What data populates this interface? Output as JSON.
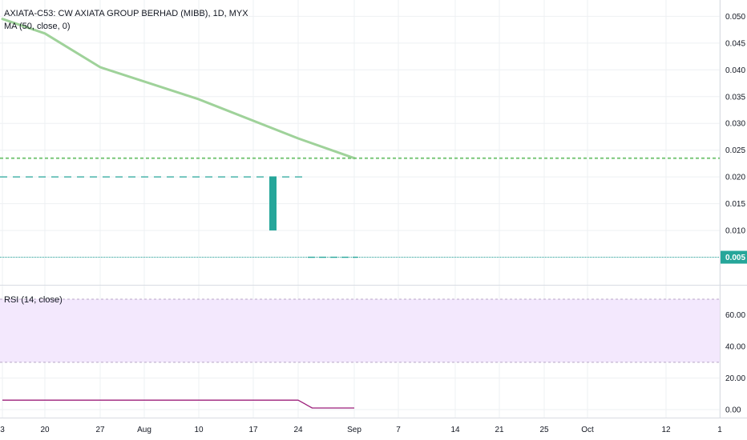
{
  "colors": {
    "grid": "#eef0f3",
    "axis_border": "#d9dce3",
    "ma_line": "#9fd29a",
    "ma_dashed": "#7ac77a",
    "candle": "#26a69a",
    "price_dash": "#26a69a",
    "price_badge": "#26a69a",
    "rsi_line": "#9c1f7a",
    "rsi_band": "#f3e8fd",
    "rsi_band_border": "#b9a6c7"
  },
  "chart_data": [
    {
      "type": "line",
      "title": "AXIATA-C53: CW AXIATA GROUP BERHAD (MIBB), 1D, MYX",
      "indicator_label": "MA (50, close, 0)",
      "x_tick_labels": [
        "3",
        "20",
        "27",
        "Aug",
        "10",
        "17",
        "24",
        "Sep",
        "7",
        "14",
        "21",
        "25",
        "Oct",
        "12",
        "1"
      ],
      "y_ticks": [
        "0.050",
        "0.045",
        "0.040",
        "0.035",
        "0.030",
        "0.025",
        "0.020",
        "0.015",
        "0.010",
        "0.005"
      ],
      "ylim": [
        0.0,
        0.052
      ],
      "ma_series": {
        "x": [
          "Jul 13",
          "Jul 20",
          "Jul 27",
          "Aug 10",
          "Aug 24",
          "Sep 1"
        ],
        "values": [
          0.0495,
          0.0468,
          0.0405,
          0.0345,
          0.0272,
          0.0235
        ]
      },
      "ma_last_value": 0.0235,
      "candle": {
        "x": "Aug 20",
        "open": 0.02,
        "close": 0.01
      },
      "price_level_before": 0.02,
      "price_level_after": 0.005,
      "current_price": "0.005",
      "grid": true
    },
    {
      "type": "line",
      "indicator_label": "RSI (14, close)",
      "y_ticks": [
        "60.00",
        "40.00",
        "20.00",
        "0.00"
      ],
      "ylim": [
        -2,
        76
      ],
      "band": [
        30,
        70
      ],
      "rsi_series": {
        "x": [
          "Jul 13",
          "Aug 24",
          "Aug 26",
          "Sep 1"
        ],
        "values": [
          6,
          6,
          1,
          1
        ]
      },
      "grid": true
    }
  ]
}
